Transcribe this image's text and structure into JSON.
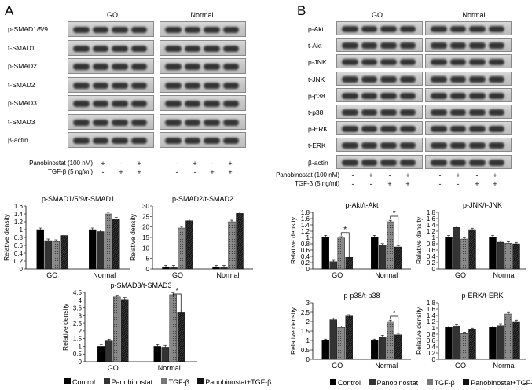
{
  "panels": {
    "A": {
      "letter": "A",
      "groups": [
        "GO",
        "Normal"
      ],
      "blot_labels": [
        "p-SMAD1/5/9",
        "t-SMAD1",
        "p-SMAD2",
        "t-SMAD2",
        "p-SMAD3",
        "t-SMAD3",
        "β-actin"
      ],
      "treatments": [
        {
          "label": "Panobinostat (100 nM)",
          "marks": [
            "-",
            "+",
            "-",
            "+",
            "-",
            "+",
            "-",
            "+"
          ]
        },
        {
          "label": "TGF-β (5 ng/ml)",
          "marks": [
            "-",
            "-",
            "+",
            "+",
            "-",
            "-",
            "+",
            "+"
          ]
        }
      ]
    },
    "B": {
      "letter": "B",
      "groups": [
        "GO",
        "Normal"
      ],
      "blot_labels": [
        "p-Akt",
        "t-Akt",
        "p-JNK",
        "t-JNK",
        "p-p38",
        "t-p38",
        "p-ERK",
        "t-ERK",
        "β-actin"
      ],
      "treatments": [
        {
          "label": "Panobinostat (100 nM)",
          "marks": [
            "-",
            "+",
            "-",
            "+",
            "-",
            "+",
            "-",
            "+"
          ]
        },
        {
          "label": "TGF-β (5 ng/ml)",
          "marks": [
            "-",
            "-",
            "+",
            "+",
            "-",
            "-",
            "+",
            "+"
          ]
        }
      ]
    }
  },
  "legend": {
    "A": [
      "Control",
      "Panobinostat",
      "TGF-β",
      "Panobinostat+TGF-β"
    ],
    "B": [
      "Control",
      "Panobinostat",
      "TGF-β",
      "Panobinostat+TGF-β"
    ]
  },
  "series_colors": [
    "#000000",
    "#333333",
    "#777777",
    "#111111"
  ],
  "chart_data": [
    {
      "type": "bar",
      "title": "p-SMAD1/5/9/t-SMAD1",
      "ylabel": "Relative density",
      "categories": [
        "GO",
        "Normal"
      ],
      "ylim": [
        0,
        1.6
      ],
      "yticks": [
        0,
        0.2,
        0.4,
        0.6,
        0.8,
        1,
        1.2,
        1.4,
        1.6
      ],
      "series": [
        {
          "values": [
            1.0,
            1.0
          ]
        },
        {
          "values": [
            0.72,
            0.95
          ]
        },
        {
          "values": [
            0.7,
            1.4
          ]
        },
        {
          "values": [
            0.85,
            1.27
          ]
        }
      ],
      "significance": []
    },
    {
      "type": "bar",
      "title": "p-SMAD2/t-SMAD2",
      "ylabel": "Relative density",
      "categories": [
        "GO",
        "Normal"
      ],
      "ylim": [
        0,
        30
      ],
      "yticks": [
        0,
        5,
        10,
        15,
        20,
        25,
        30
      ],
      "series": [
        {
          "values": [
            1,
            1
          ]
        },
        {
          "values": [
            1,
            1
          ]
        },
        {
          "values": [
            19.5,
            22.5
          ]
        },
        {
          "values": [
            23,
            26.5
          ]
        }
      ],
      "significance": []
    },
    {
      "type": "bar",
      "title": "p-SMAD3/t-SMAD3",
      "ylabel": "Relative density",
      "categories": [
        "GO",
        "Normal"
      ],
      "ylim": [
        0,
        4.5
      ],
      "yticks": [
        0,
        0.5,
        1,
        1.5,
        2,
        2.5,
        3,
        3.5,
        4,
        4.5
      ],
      "series": [
        {
          "values": [
            1.0,
            1.0
          ]
        },
        {
          "values": [
            1.35,
            0.95
          ]
        },
        {
          "values": [
            4.2,
            4.35
          ]
        },
        {
          "values": [
            4.05,
            3.2
          ]
        }
      ],
      "significance": [
        {
          "category": "Normal",
          "from": 2,
          "to": 3,
          "label": "*"
        }
      ]
    },
    {
      "type": "bar",
      "title": "p-Akt/t-Akt",
      "ylabel": "Relative density",
      "categories": [
        "GO",
        "Normal"
      ],
      "ylim": [
        0,
        1.8
      ],
      "yticks": [
        0,
        0.2,
        0.4,
        0.6,
        0.8,
        1,
        1.2,
        1.4,
        1.6,
        1.8
      ],
      "series": [
        {
          "values": [
            1.02,
            1.02
          ]
        },
        {
          "values": [
            0.23,
            0.76
          ]
        },
        {
          "values": [
            0.98,
            1.5
          ]
        },
        {
          "values": [
            0.37,
            0.7
          ]
        }
      ],
      "significance": [
        {
          "category": "GO",
          "from": 2,
          "to": 3,
          "label": "*"
        },
        {
          "category": "Normal",
          "from": 2,
          "to": 3,
          "label": "*"
        }
      ]
    },
    {
      "type": "bar",
      "title": "p-JNK/t-JNK",
      "ylabel": "Relative density",
      "categories": [
        "GO",
        "Normal"
      ],
      "ylim": [
        0,
        1.8
      ],
      "yticks": [
        0,
        0.2,
        0.4,
        0.6,
        0.8,
        1,
        1.2,
        1.4,
        1.6,
        1.8
      ],
      "series": [
        {
          "values": [
            1.02,
            1.02
          ]
        },
        {
          "values": [
            1.32,
            0.85
          ]
        },
        {
          "values": [
            0.95,
            0.82
          ]
        },
        {
          "values": [
            1.25,
            0.8
          ]
        }
      ],
      "significance": []
    },
    {
      "type": "bar",
      "title": "p-p38/t-p38",
      "ylabel": "Relative density",
      "categories": [
        "GO",
        "Normal"
      ],
      "ylim": [
        0,
        3
      ],
      "yticks": [
        0,
        0.5,
        1,
        1.5,
        2,
        2.5,
        3
      ],
      "series": [
        {
          "values": [
            1.0,
            1.0
          ]
        },
        {
          "values": [
            2.1,
            1.2
          ]
        },
        {
          "values": [
            1.7,
            2.0
          ]
        },
        {
          "values": [
            2.3,
            1.3
          ]
        }
      ],
      "significance": [
        {
          "category": "Normal",
          "from": 2,
          "to": 3,
          "label": "*"
        }
      ]
    },
    {
      "type": "bar",
      "title": "p-ERK/t-ERK",
      "ylabel": "Relative density",
      "categories": [
        "GO",
        "Normal"
      ],
      "ylim": [
        0,
        1.8
      ],
      "yticks": [
        0,
        0.2,
        0.4,
        0.6,
        0.8,
        1,
        1.2,
        1.4,
        1.6,
        1.8
      ],
      "series": [
        {
          "values": [
            1.02,
            1.02
          ]
        },
        {
          "values": [
            1.07,
            1.08
          ]
        },
        {
          "values": [
            0.82,
            1.45
          ]
        },
        {
          "values": [
            0.95,
            1.2
          ]
        }
      ],
      "significance": []
    }
  ]
}
